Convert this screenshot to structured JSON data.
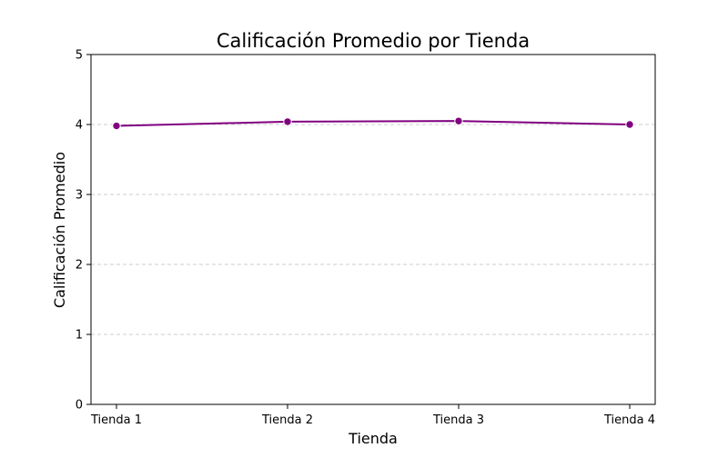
{
  "chart_data": {
    "type": "line",
    "title": "Calificación Promedio por Tienda",
    "xlabel": "Tienda",
    "ylabel": "Calificación Promedio",
    "categories": [
      "Tienda 1",
      "Tienda 2",
      "Tienda 3",
      "Tienda 4"
    ],
    "values": [
      3.98,
      4.04,
      4.05,
      4.0
    ],
    "ylim": [
      0,
      5
    ],
    "yticks": [
      "0",
      "1",
      "2",
      "3",
      "4",
      "5"
    ],
    "grid": "y-dashed",
    "legend": "none",
    "colors": {
      "line": "#800080",
      "marker": "#800080",
      "grid": "#cccccc",
      "axis": "#000000"
    }
  }
}
